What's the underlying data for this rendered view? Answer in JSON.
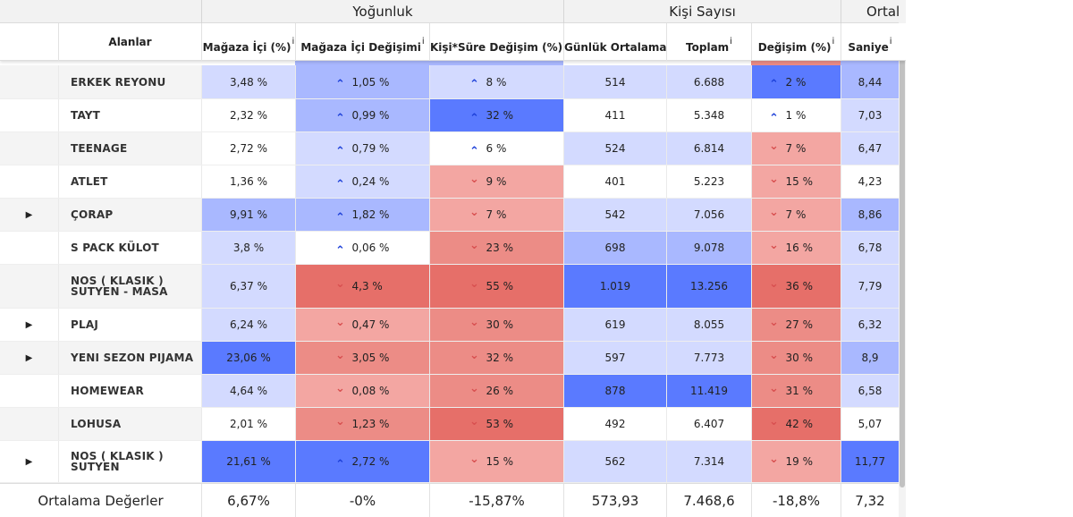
{
  "group_headers": [
    "Yoğunluk",
    "Kişi Sayısı",
    "Ortal"
  ],
  "columns": {
    "alanlar": "Alanlar",
    "magaza_ici": "Mağaza İçi (%)",
    "magaza_ici_degisim": "Mağaza İçi Değişimi",
    "kisi_sure": "Kişi*Süre Değişim (%)",
    "gunluk": "Günlük Ortalama",
    "toplam": "Toplam",
    "degisim": "Değişim (%)",
    "saniye": "Saniye",
    "info_glyph": "i"
  },
  "glyphs": {
    "up": "⌃",
    "down": "⌄",
    "expand": "▶"
  },
  "colors": {
    "white": "#ffffff",
    "blue_light": "#d3daff",
    "blue_mid": "#a9b8ff",
    "blue_dark": "#5a7aff",
    "red_light": "#f3a6a2",
    "red_mid": "#ec8c86",
    "red_dark": "#e66f69",
    "row_alt": "#f4f4f4",
    "row_plain": "#ffffff"
  },
  "rows": [
    {
      "name_lines": [
        "ERKEK REYONU"
      ],
      "expandable": false,
      "magaza": "3,48 %",
      "magaza_c": "blue_light",
      "md": "1,05 %",
      "md_dir": "up",
      "md_c": "blue_mid",
      "ks": "8 %",
      "ks_dir": "up",
      "ks_c": "blue_light",
      "gunluk": "514",
      "gunluk_c": "blue_light",
      "toplam": "6.688",
      "toplam_c": "blue_light",
      "deg": "2 %",
      "deg_dir": "up",
      "deg_c": "blue_dark",
      "saniye": "8,44",
      "saniye_c": "blue_mid"
    },
    {
      "name_lines": [
        "TAYT"
      ],
      "expandable": false,
      "magaza": "2,32 %",
      "magaza_c": "white",
      "md": "0,99 %",
      "md_dir": "up",
      "md_c": "blue_mid",
      "ks": "32 %",
      "ks_dir": "up",
      "ks_c": "blue_dark",
      "gunluk": "411",
      "gunluk_c": "white",
      "toplam": "5.348",
      "toplam_c": "white",
      "deg": "1 %",
      "deg_dir": "up",
      "deg_c": "white",
      "saniye": "7,03",
      "saniye_c": "blue_light"
    },
    {
      "name_lines": [
        "TEENAGE"
      ],
      "expandable": false,
      "magaza": "2,72 %",
      "magaza_c": "white",
      "md": "0,79 %",
      "md_dir": "up",
      "md_c": "blue_light",
      "ks": "6 %",
      "ks_dir": "up",
      "ks_c": "white",
      "gunluk": "524",
      "gunluk_c": "blue_light",
      "toplam": "6.814",
      "toplam_c": "blue_light",
      "deg": "7 %",
      "deg_dir": "down",
      "deg_c": "red_light",
      "saniye": "6,47",
      "saniye_c": "blue_light"
    },
    {
      "name_lines": [
        "ATLET"
      ],
      "expandable": false,
      "magaza": "1,36 %",
      "magaza_c": "white",
      "md": "0,24 %",
      "md_dir": "up",
      "md_c": "blue_light",
      "ks": "9 %",
      "ks_dir": "down",
      "ks_c": "red_light",
      "gunluk": "401",
      "gunluk_c": "white",
      "toplam": "5.223",
      "toplam_c": "white",
      "deg": "15 %",
      "deg_dir": "down",
      "deg_c": "red_light",
      "saniye": "4,23",
      "saniye_c": "white"
    },
    {
      "name_lines": [
        "ÇORAP"
      ],
      "expandable": true,
      "magaza": "9,91 %",
      "magaza_c": "blue_mid",
      "md": "1,82 %",
      "md_dir": "up",
      "md_c": "blue_mid",
      "ks": "7 %",
      "ks_dir": "down",
      "ks_c": "red_light",
      "gunluk": "542",
      "gunluk_c": "blue_light",
      "toplam": "7.056",
      "toplam_c": "blue_light",
      "deg": "7 %",
      "deg_dir": "down",
      "deg_c": "red_light",
      "saniye": "8,86",
      "saniye_c": "blue_mid"
    },
    {
      "name_lines": [
        "S PACK KÜLOT"
      ],
      "expandable": false,
      "magaza": "3,8 %",
      "magaza_c": "blue_light",
      "md": "0,06 %",
      "md_dir": "up",
      "md_c": "white",
      "ks": "23 %",
      "ks_dir": "down",
      "ks_c": "red_mid",
      "gunluk": "698",
      "gunluk_c": "blue_mid",
      "toplam": "9.078",
      "toplam_c": "blue_mid",
      "deg": "16 %",
      "deg_dir": "down",
      "deg_c": "red_light",
      "saniye": "6,78",
      "saniye_c": "blue_light"
    },
    {
      "name_lines": [
        "NOS ( KLASIK )",
        "SUTYEN - MASA"
      ],
      "expandable": false,
      "magaza": "6,37 %",
      "magaza_c": "blue_light",
      "md": "4,3 %",
      "md_dir": "down",
      "md_c": "red_dark",
      "ks": "55 %",
      "ks_dir": "down",
      "ks_c": "red_dark",
      "gunluk": "1.019",
      "gunluk_c": "blue_dark",
      "toplam": "13.256",
      "toplam_c": "blue_dark",
      "deg": "36 %",
      "deg_dir": "down",
      "deg_c": "red_dark",
      "saniye": "7,79",
      "saniye_c": "blue_light"
    },
    {
      "name_lines": [
        "PLAJ"
      ],
      "expandable": true,
      "magaza": "6,24 %",
      "magaza_c": "blue_light",
      "md": "0,47 %",
      "md_dir": "down",
      "md_c": "red_light",
      "ks": "30 %",
      "ks_dir": "down",
      "ks_c": "red_mid",
      "gunluk": "619",
      "gunluk_c": "blue_light",
      "toplam": "8.055",
      "toplam_c": "blue_light",
      "deg": "27 %",
      "deg_dir": "down",
      "deg_c": "red_mid",
      "saniye": "6,32",
      "saniye_c": "blue_light"
    },
    {
      "name_lines": [
        "YENI SEZON PIJAMA"
      ],
      "expandable": true,
      "magaza": "23,06 %",
      "magaza_c": "blue_dark",
      "md": "3,05 %",
      "md_dir": "down",
      "md_c": "red_mid",
      "ks": "32 %",
      "ks_dir": "down",
      "ks_c": "red_mid",
      "gunluk": "597",
      "gunluk_c": "blue_light",
      "toplam": "7.773",
      "toplam_c": "blue_light",
      "deg": "30 %",
      "deg_dir": "down",
      "deg_c": "red_mid",
      "saniye": "8,9",
      "saniye_c": "blue_mid"
    },
    {
      "name_lines": [
        "HOMEWEAR"
      ],
      "expandable": false,
      "magaza": "4,64 %",
      "magaza_c": "blue_light",
      "md": "0,08 %",
      "md_dir": "down",
      "md_c": "red_light",
      "ks": "26 %",
      "ks_dir": "down",
      "ks_c": "red_mid",
      "gunluk": "878",
      "gunluk_c": "blue_dark",
      "toplam": "11.419",
      "toplam_c": "blue_dark",
      "deg": "31 %",
      "deg_dir": "down",
      "deg_c": "red_mid",
      "saniye": "6,58",
      "saniye_c": "blue_light"
    },
    {
      "name_lines": [
        "LOHUSA"
      ],
      "expandable": false,
      "magaza": "2,01 %",
      "magaza_c": "white",
      "md": "1,23 %",
      "md_dir": "down",
      "md_c": "red_mid",
      "ks": "53 %",
      "ks_dir": "down",
      "ks_c": "red_dark",
      "gunluk": "492",
      "gunluk_c": "white",
      "toplam": "6.407",
      "toplam_c": "white",
      "deg": "42 %",
      "deg_dir": "down",
      "deg_c": "red_dark",
      "saniye": "5,07",
      "saniye_c": "white"
    },
    {
      "name_lines": [
        "NOS ( KLASIK )",
        "SUTYEN"
      ],
      "expandable": true,
      "magaza": "21,61 %",
      "magaza_c": "blue_dark",
      "md": "2,72 %",
      "md_dir": "up",
      "md_c": "blue_dark",
      "ks": "15 %",
      "ks_dir": "down",
      "ks_c": "red_light",
      "gunluk": "562",
      "gunluk_c": "blue_light",
      "toplam": "7.314",
      "toplam_c": "blue_light",
      "deg": "19 %",
      "deg_dir": "down",
      "deg_c": "red_light",
      "saniye": "11,77",
      "saniye_c": "blue_dark"
    }
  ],
  "footer": {
    "label": "Ortalama Değerler",
    "magaza": "6,67%",
    "md": "-0%",
    "ks": "-15,87%",
    "gunluk": "573,93",
    "toplam": "7.468,6",
    "deg": "-18,8%",
    "saniye": "7,32"
  }
}
